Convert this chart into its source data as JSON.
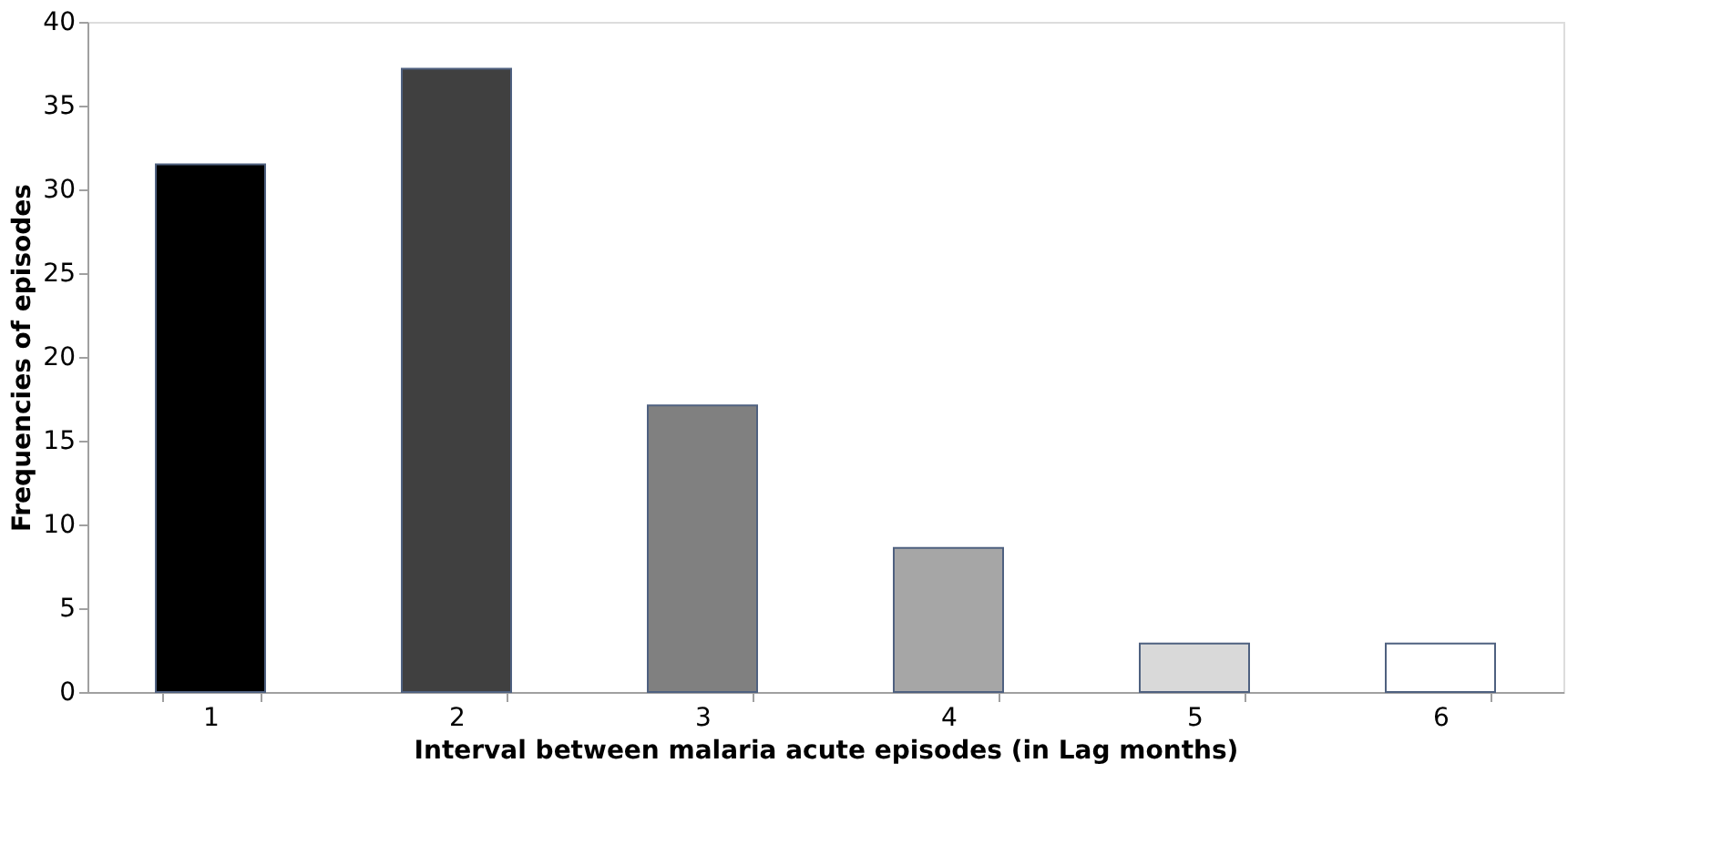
{
  "chart_data": {
    "type": "bar",
    "xlabel": "Interval between malaria acute episodes (in Lag months)",
    "ylabel": "Frequencies of episodes",
    "categories": [
      "1",
      "2",
      "3",
      "4",
      "5",
      "6"
    ],
    "values": [
      31.5,
      37.2,
      17.1,
      8.6,
      2.9,
      2.9
    ],
    "colors": [
      "#000000",
      "#404040",
      "#808080",
      "#a6a6a6",
      "#d9d9d9",
      "#ffffff"
    ],
    "ylim": [
      0,
      40
    ],
    "yticks": [
      0,
      5,
      10,
      15,
      20,
      25,
      30,
      35,
      40
    ],
    "grid": false,
    "legend": false
  }
}
